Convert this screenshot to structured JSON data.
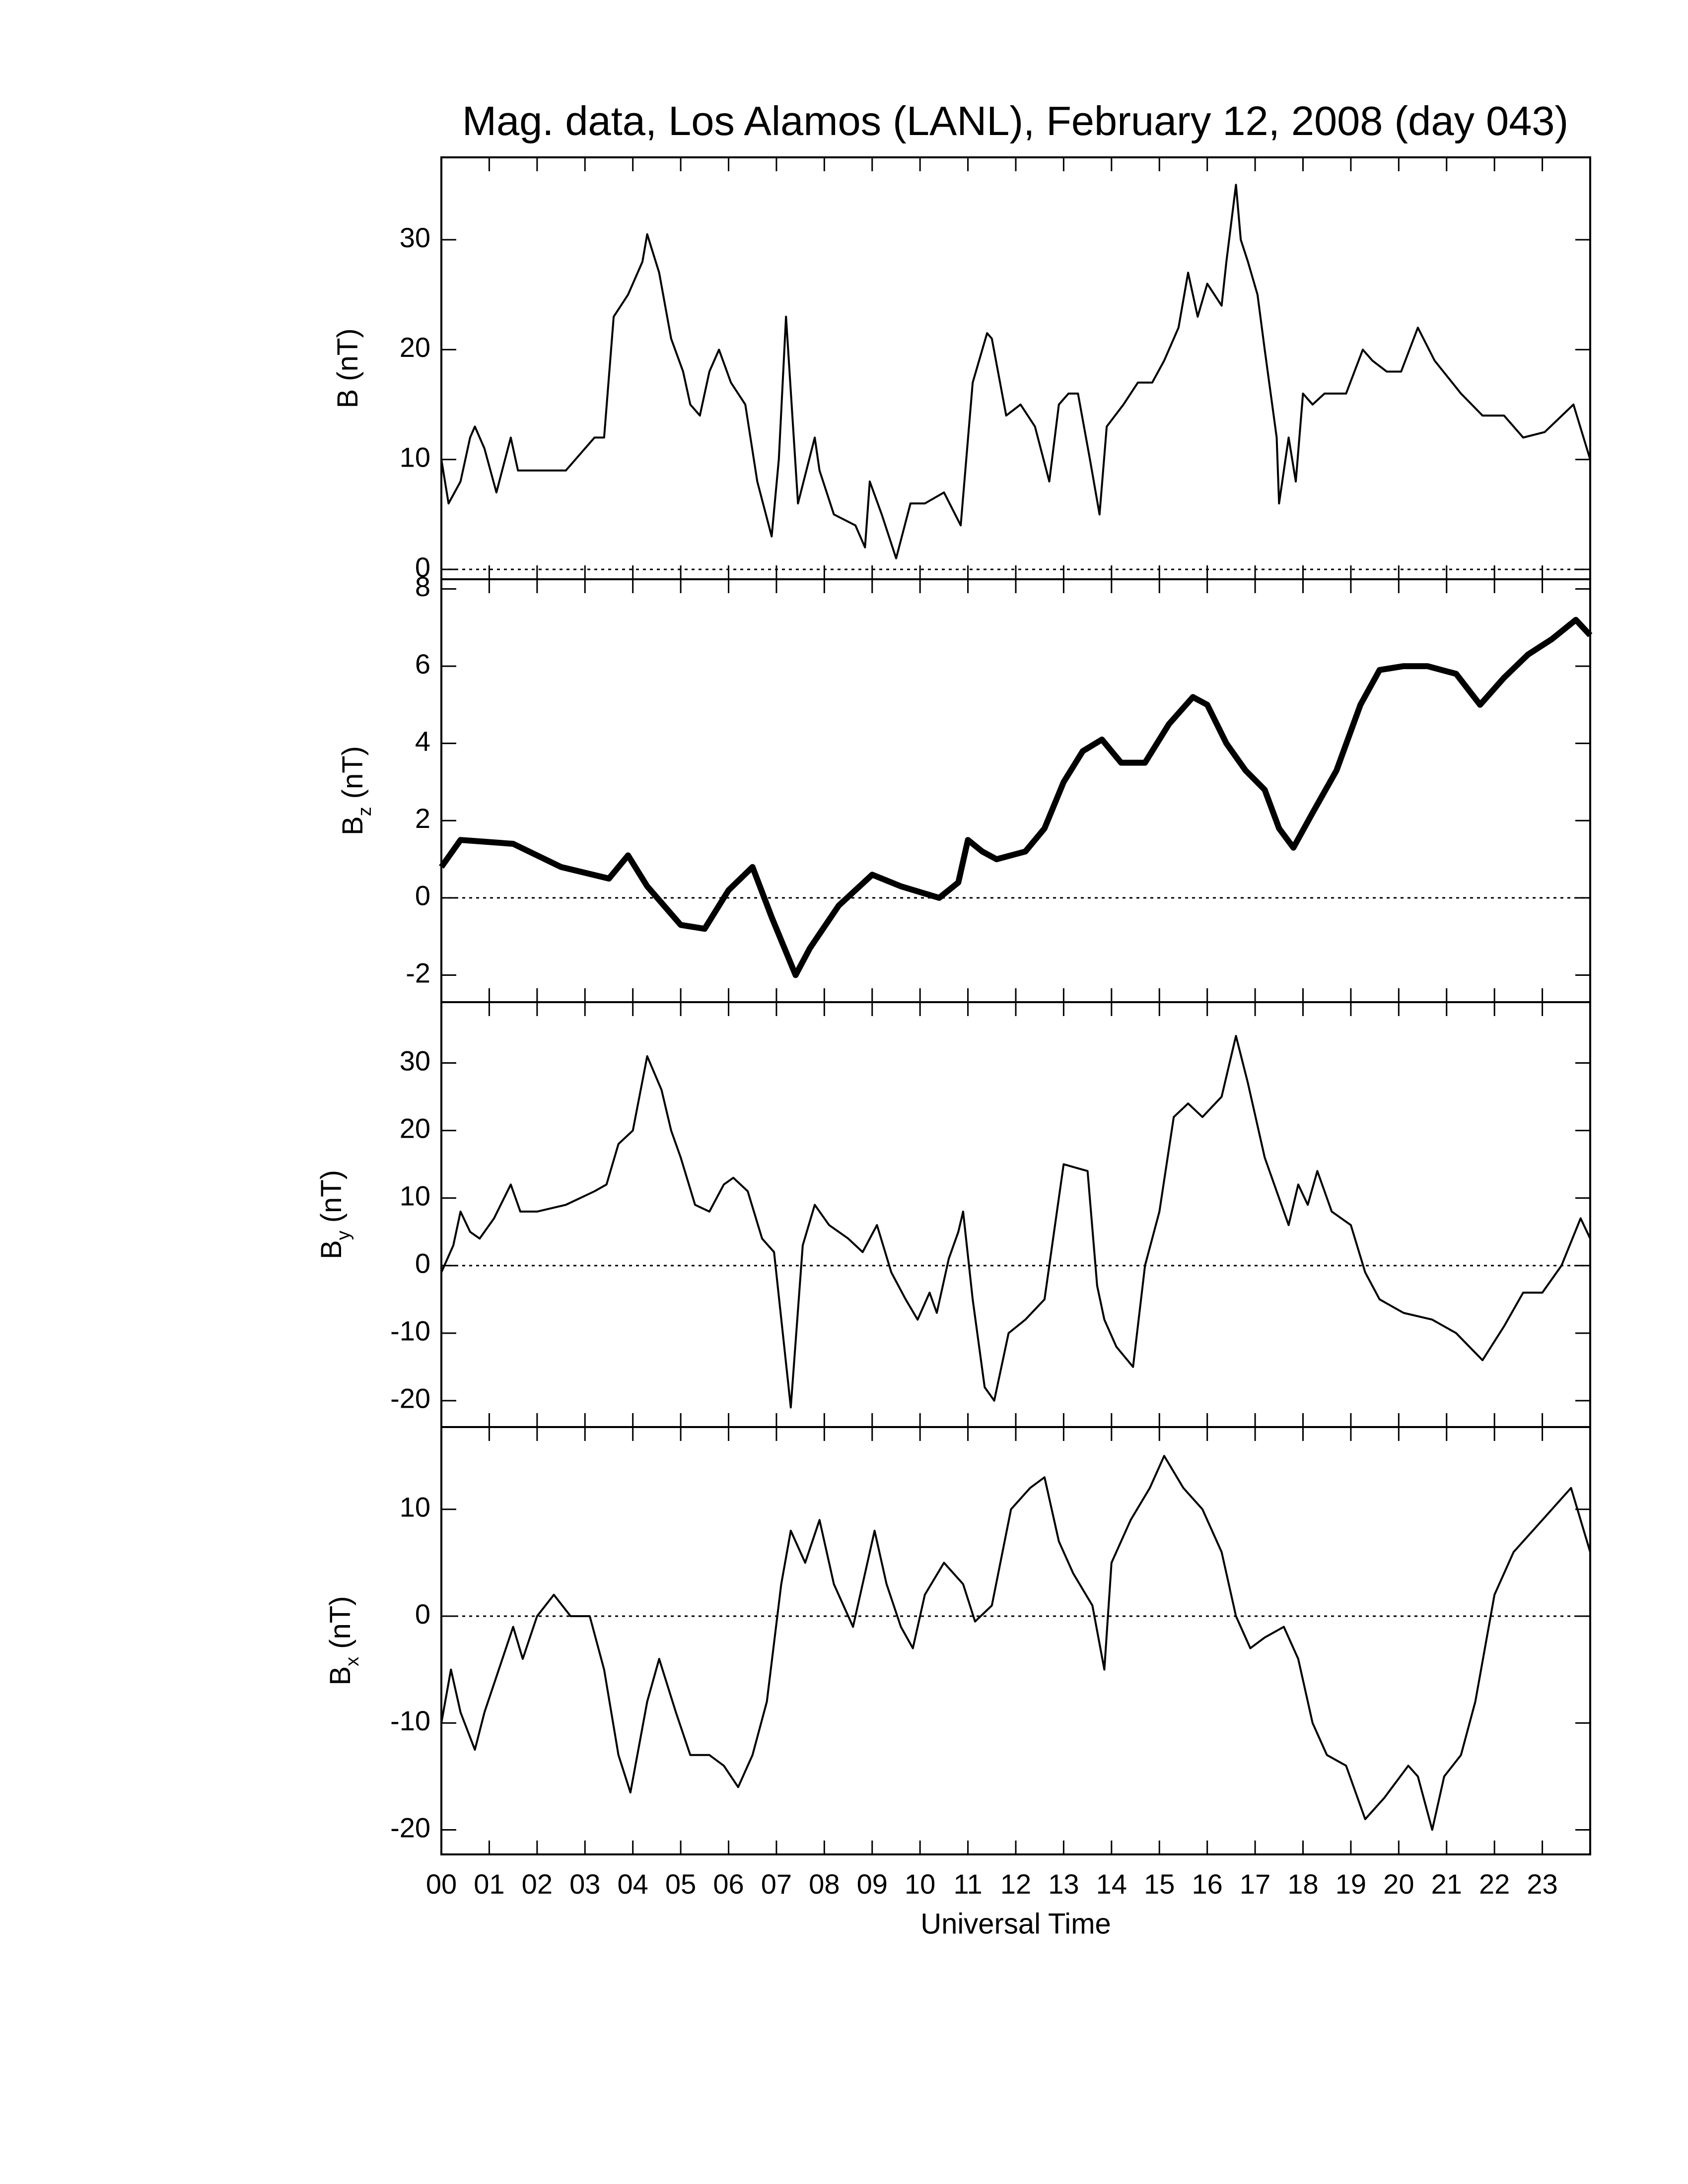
{
  "chart_data": [
    {
      "type": "line",
      "title": "Mag. data, Los Alamos (LANL), February 12, 2008 (day 043)",
      "ylabel": {
        "symbol": "B",
        "units": "(nT)"
      },
      "x": [
        0,
        0.15,
        0.4,
        0.6,
        0.7,
        0.9,
        1.15,
        1.45,
        1.6,
        2.0,
        2.6,
        3.2,
        3.4,
        3.6,
        3.9,
        4.2,
        4.3,
        4.55,
        4.8,
        5.05,
        5.2,
        5.4,
        5.6,
        5.8,
        6.05,
        6.35,
        6.6,
        6.9,
        7.05,
        7.2,
        7.45,
        7.8,
        7.9,
        8.2,
        8.65,
        8.85,
        8.95,
        9.2,
        9.5,
        9.8,
        10.1,
        10.5,
        10.85,
        11.1,
        11.4,
        11.5,
        11.8,
        12.1,
        12.4,
        12.7,
        12.9,
        13.1,
        13.3,
        13.55,
        13.75,
        13.9,
        14.25,
        14.55,
        14.85,
        15.1,
        15.4,
        15.6,
        15.8,
        16.0,
        16.3,
        16.4,
        16.6,
        16.7,
        16.85,
        17.05,
        17.2,
        17.45,
        17.5,
        17.7,
        17.85,
        18.0,
        18.2,
        18.45,
        18.9,
        19.25,
        19.45,
        19.75,
        20.05,
        20.4,
        20.75,
        21.3,
        21.75,
        22.2,
        22.6,
        23.05,
        23.65,
        24
      ],
      "series": [
        {
          "color": "#000000",
          "values": [
            10,
            6,
            8,
            12,
            13,
            11,
            7,
            12,
            9,
            9,
            9,
            12,
            12,
            23,
            25,
            28,
            30.5,
            27,
            21,
            18,
            15,
            14,
            18,
            20,
            17,
            15,
            8,
            3,
            10,
            23,
            6,
            12,
            9,
            5,
            4,
            2,
            8,
            5,
            1,
            6,
            6,
            7,
            4,
            17,
            21.5,
            21,
            14,
            15,
            13,
            8,
            15,
            16,
            16,
            10,
            5,
            13,
            15,
            17,
            17,
            19,
            22,
            27,
            23,
            26,
            24,
            28,
            35,
            30,
            28,
            25,
            20,
            12,
            6,
            12,
            8,
            16,
            15,
            16,
            16,
            20,
            19,
            18,
            18,
            22,
            19,
            16,
            14,
            14,
            12,
            12.5,
            15,
            10
          ]
        }
      ],
      "xlim": [
        0,
        24
      ],
      "ylim": [
        -0.9,
        37.5
      ],
      "yticks": [
        0,
        10,
        20,
        30
      ],
      "hline": 0
    },
    {
      "type": "line",
      "ylabel": {
        "symbol": "B",
        "subscript": "z",
        "units": "(nT)"
      },
      "x": [
        0,
        0.4,
        1.5,
        2.5,
        3.5,
        3.9,
        4.3,
        5.0,
        5.5,
        6.0,
        6.5,
        6.9,
        7.4,
        7.7,
        8.3,
        9.0,
        9.6,
        10.4,
        10.8,
        11.0,
        11.3,
        11.6,
        12.2,
        12.6,
        13.0,
        13.4,
        13.8,
        14.2,
        14.7,
        15.2,
        15.7,
        16.0,
        16.4,
        16.8,
        17.2,
        17.5,
        17.8,
        18.2,
        18.7,
        19.2,
        19.6,
        20.1,
        20.6,
        21.2,
        21.7,
        22.2,
        22.7,
        23.2,
        23.7,
        24
      ],
      "series": [
        {
          "color": "#000000",
          "values": [
            0.8,
            1.5,
            1.4,
            0.8,
            0.5,
            1.1,
            0.3,
            -0.7,
            -0.8,
            0.2,
            0.8,
            -0.5,
            -2.0,
            -1.3,
            -0.2,
            0.6,
            0.3,
            0.0,
            0.4,
            1.5,
            1.2,
            1.0,
            1.2,
            1.8,
            3.0,
            3.8,
            4.1,
            3.5,
            3.5,
            4.5,
            5.2,
            5.0,
            4.0,
            3.3,
            2.8,
            1.8,
            1.3,
            2.2,
            3.3,
            5.0,
            5.9,
            6.0,
            6.0,
            5.8,
            5.0,
            5.7,
            6.3,
            6.7,
            7.2,
            6.8
          ]
        }
      ],
      "xlim": [
        0,
        24
      ],
      "ylim": [
        -2.7,
        8.25
      ],
      "yticks": [
        -2,
        0,
        2,
        4,
        6,
        8
      ],
      "hline": 0
    },
    {
      "type": "line",
      "ylabel": {
        "symbol": "B",
        "subscript": "y",
        "units": "(nT)"
      },
      "x": [
        0,
        0.25,
        0.4,
        0.6,
        0.8,
        1.1,
        1.45,
        1.65,
        2.0,
        2.6,
        3.2,
        3.45,
        3.7,
        4.0,
        4.3,
        4.6,
        4.8,
        5.0,
        5.3,
        5.6,
        5.9,
        6.1,
        6.4,
        6.7,
        6.95,
        7.3,
        7.55,
        7.8,
        8.1,
        8.5,
        8.8,
        9.1,
        9.4,
        9.7,
        9.95,
        10.2,
        10.35,
        10.6,
        10.8,
        10.9,
        11.1,
        11.35,
        11.55,
        11.85,
        12.2,
        12.6,
        12.8,
        13.0,
        13.5,
        13.7,
        13.85,
        14.1,
        14.45,
        14.7,
        15.0,
        15.3,
        15.6,
        15.9,
        16.3,
        16.6,
        16.85,
        17.2,
        17.5,
        17.7,
        17.9,
        18.1,
        18.3,
        18.6,
        19.0,
        19.3,
        19.6,
        20.1,
        20.7,
        21.2,
        21.75,
        22.2,
        22.6,
        23.0,
        23.4,
        23.8,
        24
      ],
      "series": [
        {
          "color": "#000000",
          "values": [
            -1,
            3,
            8,
            5,
            4,
            7,
            12,
            8,
            8,
            9,
            11,
            12,
            18,
            20,
            31,
            26,
            20,
            16,
            9,
            8,
            12,
            13,
            11,
            4,
            2,
            -21,
            3,
            9,
            6,
            4,
            2,
            6,
            -1,
            -5,
            -8,
            -4,
            -7,
            1,
            5,
            8,
            -5,
            -18,
            -20,
            -10,
            -8,
            -5,
            5,
            15,
            14,
            -3,
            -8,
            -12,
            -15,
            0,
            8,
            22,
            24,
            22,
            25,
            34,
            27,
            16,
            10,
            6,
            12,
            9,
            14,
            8,
            6,
            -1,
            -5,
            -7,
            -8,
            -10,
            -14,
            -9,
            -4,
            -4,
            0,
            7,
            4
          ]
        }
      ],
      "xlim": [
        0,
        24
      ],
      "ylim": [
        -23.9,
        39
      ],
      "yticks": [
        -20,
        -10,
        0,
        10,
        20,
        30
      ],
      "hline": 0
    },
    {
      "type": "line",
      "ylabel": {
        "symbol": "B",
        "subscript": "x",
        "units": "(nT)"
      },
      "xlabel": "Universal Time",
      "x": [
        0,
        0.2,
        0.4,
        0.7,
        0.9,
        1.2,
        1.5,
        1.7,
        2.0,
        2.35,
        2.7,
        3.1,
        3.4,
        3.7,
        3.95,
        4.3,
        4.55,
        4.9,
        5.2,
        5.6,
        5.9,
        6.2,
        6.5,
        6.8,
        7.1,
        7.3,
        7.6,
        7.9,
        8.2,
        8.6,
        8.85,
        9.05,
        9.3,
        9.6,
        9.85,
        10.1,
        10.5,
        10.9,
        11.15,
        11.5,
        11.9,
        12.3,
        12.6,
        12.9,
        13.2,
        13.6,
        13.85,
        14.0,
        14.4,
        14.8,
        15.1,
        15.5,
        15.9,
        16.3,
        16.6,
        16.9,
        17.2,
        17.6,
        17.9,
        18.2,
        18.5,
        18.9,
        19.3,
        19.7,
        20.2,
        20.4,
        20.7,
        20.95,
        21.3,
        21.6,
        22.0,
        22.4,
        23.0,
        23.6,
        24
      ],
      "series": [
        {
          "color": "#000000",
          "values": [
            -10,
            -5,
            -9,
            -12.5,
            -9,
            -5,
            -1,
            -4,
            0,
            2,
            0,
            0,
            -5,
            -13,
            -16.5,
            -8,
            -4,
            -9,
            -13,
            -13,
            -14,
            -16,
            -13,
            -8,
            3,
            8,
            5,
            9,
            3,
            -1,
            4,
            8,
            3,
            -1,
            -3,
            2,
            5,
            3,
            -0.5,
            1,
            10,
            12,
            13,
            7,
            4,
            1,
            -5,
            5,
            9,
            12,
            15,
            12,
            10,
            6,
            0,
            -3,
            -2,
            -1,
            -4,
            -10,
            -13,
            -14,
            -19,
            -17,
            -14,
            -15,
            -20,
            -15,
            -13,
            -8,
            2,
            6,
            9,
            12,
            6
          ]
        }
      ],
      "xlim": [
        0,
        24
      ],
      "ylim": [
        -22.3,
        17.7
      ],
      "yticks": [
        -20,
        -10,
        0,
        10
      ],
      "hline": 0,
      "xticks": [
        {
          "value": 0,
          "label": "00"
        },
        {
          "value": 1,
          "label": "01"
        },
        {
          "value": 2,
          "label": "02"
        },
        {
          "value": 3,
          "label": "03"
        },
        {
          "value": 4,
          "label": "04"
        },
        {
          "value": 5,
          "label": "05"
        },
        {
          "value": 6,
          "label": "06"
        },
        {
          "value": 7,
          "label": "07"
        },
        {
          "value": 8,
          "label": "08"
        },
        {
          "value": 9,
          "label": "09"
        },
        10,
        11,
        12,
        13,
        14,
        15,
        16,
        17,
        18,
        19,
        20,
        21,
        22,
        23
      ]
    }
  ]
}
